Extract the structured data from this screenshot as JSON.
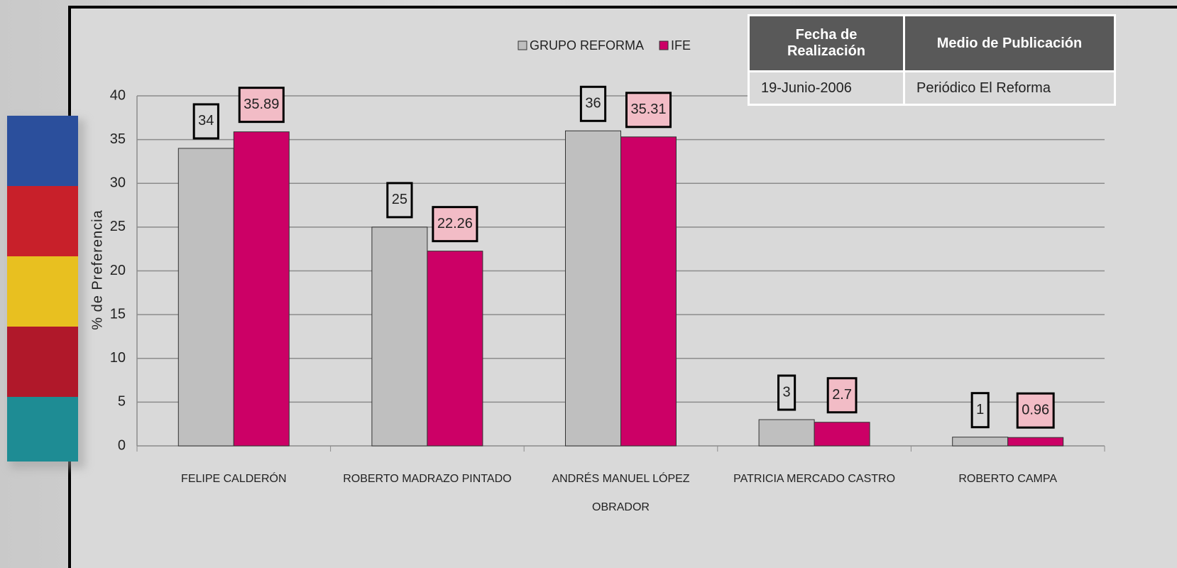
{
  "chart_data": {
    "type": "bar",
    "y_label": "% de Preferencia",
    "categories": [
      "FELIPE CALDERÓN",
      "ROBERTO MADRAZO PINTADO",
      "ANDRÉS MANUEL LÓPEZ OBRADOR",
      "PATRICIA MERCADO CASTRO",
      "ROBERTO CAMPA"
    ],
    "series": [
      {
        "name": "GRUPO REFORMA",
        "color": "#bfbfbf",
        "label_color": "#d9d9d9",
        "values": [
          34,
          25,
          36,
          3,
          1
        ]
      },
      {
        "name": "IFE",
        "color": "#cc0066",
        "label_color": "#f2bcc6",
        "values": [
          35.89,
          22.26,
          35.31,
          2.7,
          0.96
        ]
      }
    ],
    "ylim": [
      0,
      40
    ],
    "yticks": [
      0,
      5,
      10,
      15,
      20,
      25,
      30,
      35,
      40
    ],
    "grid": true,
    "legend": "top"
  },
  "table": {
    "headers": [
      "Fecha de Realización",
      "Medio de Publicación"
    ],
    "rows": [
      [
        "19-Junio-2006",
        "Periódico El Reforma"
      ]
    ]
  }
}
